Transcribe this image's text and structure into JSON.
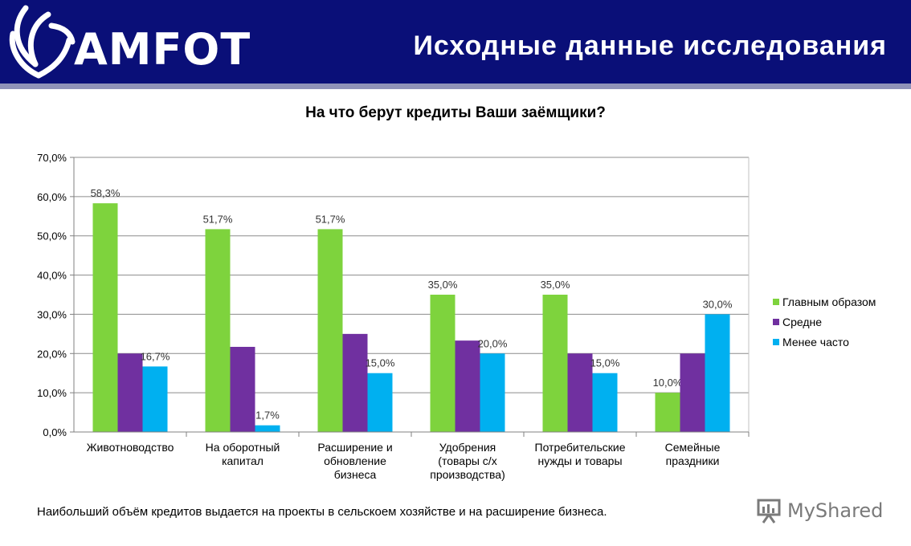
{
  "header": {
    "logo_text": "AMFOT",
    "title": "Исходные данные исследования",
    "background_color": "#0a0f78"
  },
  "chart_data": {
    "type": "bar",
    "title": "На что берут кредиты Ваши заёмщики?",
    "categories": [
      [
        "Животноводство"
      ],
      [
        "На оборотный",
        "капитал"
      ],
      [
        "Расширение и",
        "обновление",
        "бизнеса"
      ],
      [
        "Удобрения",
        "(товары с/х",
        "производства)"
      ],
      [
        "Потребительские",
        "нужды и товары"
      ],
      [
        "Семейные",
        "праздники"
      ]
    ],
    "series": [
      {
        "name": "Главным образом",
        "color": "#7ed33d",
        "values": [
          58.3,
          51.7,
          51.7,
          35.0,
          35.0,
          10.0
        ],
        "labels": [
          "58,3%",
          "51,7%",
          "51,7%",
          "35,0%",
          "35,0%",
          "10,0%"
        ]
      },
      {
        "name": "Средне",
        "color": "#7030a0",
        "values": [
          20.0,
          21.7,
          25.0,
          23.3,
          20.0,
          20.0
        ],
        "labels": [
          null,
          null,
          null,
          null,
          null,
          null
        ]
      },
      {
        "name": "Менее часто",
        "color": "#00b0f0",
        "values": [
          16.7,
          1.7,
          15.0,
          20.0,
          15.0,
          30.0
        ],
        "labels": [
          "16,7%",
          "1,7%",
          "15,0%",
          "20,0%",
          "15,0%",
          "30,0%"
        ]
      }
    ],
    "y_ticks": [
      "0,0%",
      "10,0%",
      "20,0%",
      "30,0%",
      "40,0%",
      "50,0%",
      "60,0%",
      "70,0%"
    ],
    "ylim": [
      0,
      70
    ],
    "grid": true,
    "legend_position": "right"
  },
  "footnote": "Наибольший объём кредитов выдается на проекты в сельскоем хозяйстве и на расширение бизнеса.",
  "watermark": {
    "text": "MyShared",
    "icon": "presentation-board-icon"
  }
}
